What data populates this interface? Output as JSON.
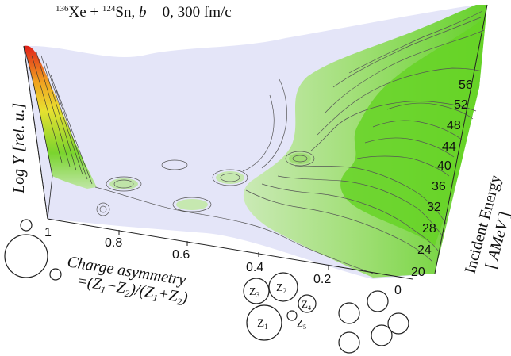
{
  "chart_data": {
    "type": "surface3d",
    "title_parts": {
      "a1": "136",
      "e1": "Xe",
      "plus": " + ",
      "a2": "124",
      "e2": "Sn",
      "rest1": ", ",
      "b": "b",
      "rest2": " = 0, 300 fm/c"
    },
    "x_axis": {
      "label_line1": "Charge asymmetry",
      "label_line2": "=(Z1−Z2)/(Z1+Z2)",
      "label_parts": {
        "eq": "=(",
        "z1": "Z",
        "s1": "1",
        "minus": "−",
        "z2": "Z",
        "s2": "2",
        "mid": ")/(",
        "z3": "Z",
        "s3": "1",
        "plus": "+",
        "z4": "Z",
        "s4": "2",
        "end": ")"
      },
      "range": [
        0,
        1
      ],
      "ticks": [
        "1",
        "0.8",
        "0.6",
        "0.4",
        "0.2",
        "0"
      ]
    },
    "y_axis": {
      "label_line1": "Incident Energy",
      "label_line2": "[ AMeV ]",
      "label_parts": {
        "open": "[ ",
        "unit": "AMeV",
        "close": " ]"
      },
      "range": [
        20,
        56
      ],
      "ticks": [
        "20",
        "24",
        "28",
        "32",
        "36",
        "40",
        "44",
        "48",
        "52",
        "56"
      ]
    },
    "z_axis": {
      "label": "Log Y [rel. u.]",
      "label_parts": {
        "log": "Log ",
        "y": "Y",
        "unit": " [rel. u.]"
      }
    },
    "partition_diagram_labels": [
      "Z1",
      "Z2",
      "Z3",
      "Z4",
      "Z5"
    ],
    "colors": {
      "peak_red": "#e0201a",
      "mid_orange": "#f0a020",
      "yellow": "#e8e030",
      "bright_green": "#6ad62a",
      "light_green": "#bde6a0",
      "pale_lavender": "#e4e5f8",
      "contour": "#555555",
      "outline": "#222222"
    }
  }
}
